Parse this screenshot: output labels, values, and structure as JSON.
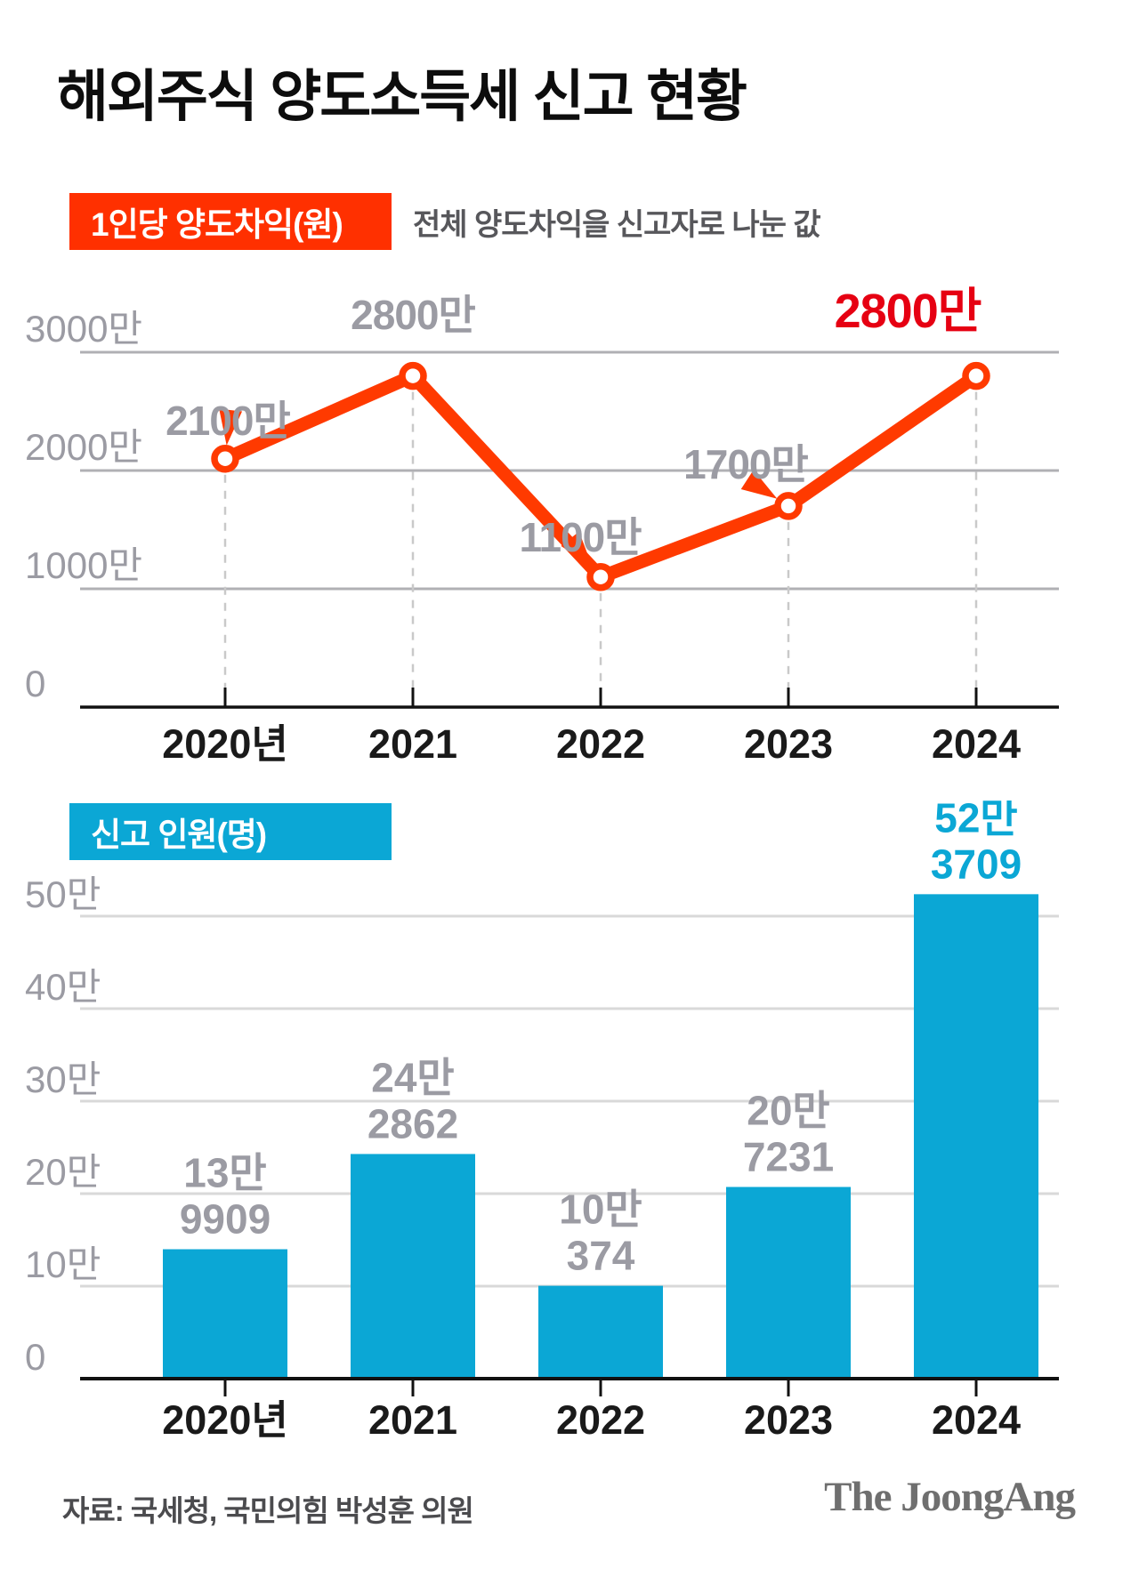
{
  "title": "해외주식 양도소득세 신고 현황",
  "colors": {
    "red_badge": "#ff3000",
    "line_red": "#ff3a00",
    "emphasis_red": "#e60012",
    "cyan": "#0ba7d5",
    "gray_label": "#9b9ba3",
    "grid_dark": "#b0b0b4",
    "grid_light": "#d9d9d9",
    "dash_gray": "#c9c9c9",
    "axis_black": "#111111",
    "xlabel_black": "#1a1a1a"
  },
  "chart_data": [
    {
      "type": "line",
      "badge_label": "1인당 양도차익(원)",
      "subtitle": "전체 양도차익을 신고자로 나눈 값",
      "categories": [
        "2020년",
        "2021",
        "2022",
        "2023",
        "2024"
      ],
      "values": [
        2100,
        2800,
        1100,
        1700,
        2800
      ],
      "point_labels": [
        "2100만",
        "2800만",
        "1100만",
        "1700만",
        "2800만"
      ],
      "emphasis_index": 4,
      "ylim": [
        0,
        3000
      ],
      "ytick_values": [
        3000,
        2000,
        1000,
        0
      ],
      "ytick_labels": [
        "3000만",
        "2000만",
        "1000만",
        "0"
      ],
      "grid": "on",
      "legend_position": "none",
      "unit": "만 원 (10,000 KRW)"
    },
    {
      "type": "bar",
      "badge_label": "신고 인원(명)",
      "categories": [
        "2020년",
        "2021",
        "2022",
        "2023",
        "2024"
      ],
      "values": [
        139909,
        242862,
        100374,
        207231,
        523709
      ],
      "bar_labels": [
        [
          "13만",
          "9909"
        ],
        [
          "24만",
          "2862"
        ],
        [
          "10만",
          "374"
        ],
        [
          "20만",
          "7231"
        ],
        [
          "52만",
          "3709"
        ]
      ],
      "emphasis_index": 4,
      "ylim": [
        0,
        550000
      ],
      "ytick_values": [
        500000,
        400000,
        300000,
        200000,
        100000,
        0
      ],
      "ytick_labels": [
        "50만",
        "40만",
        "30만",
        "20만",
        "10만",
        "0"
      ],
      "grid": "on",
      "legend_position": "none",
      "unit": "명 (persons)"
    }
  ],
  "footer": {
    "source": "자료: 국세청, 국민의힘 박성훈 의원",
    "logo": "The JoongAng"
  }
}
